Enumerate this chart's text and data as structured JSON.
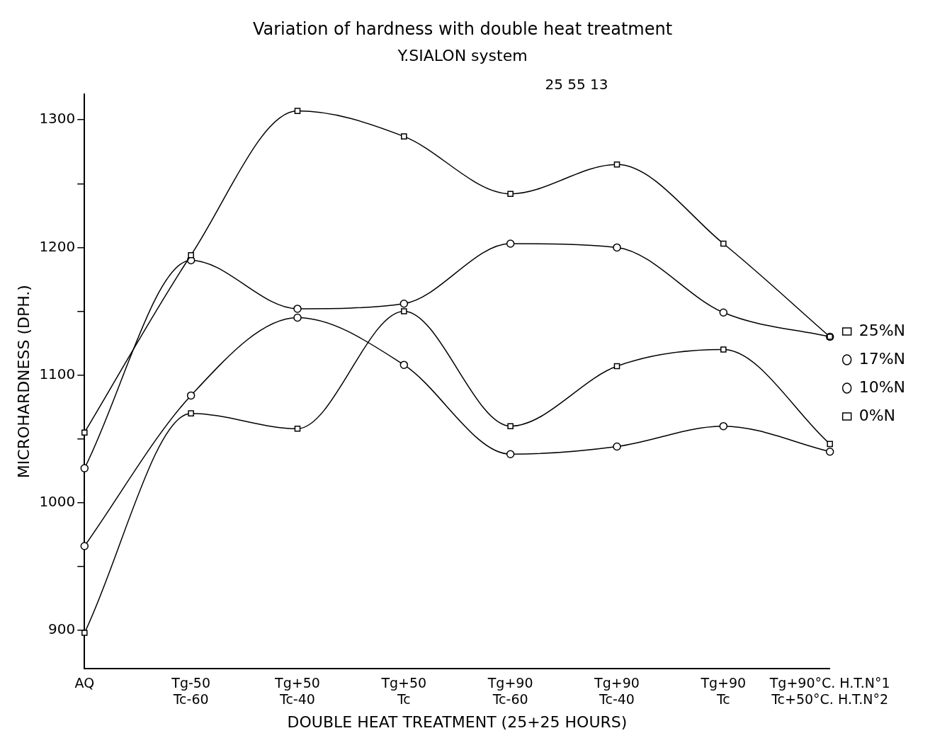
{
  "chart_data": {
    "type": "line",
    "title": "Variation of hardness with double heat treatment",
    "subtitle": "Y.SIALON system",
    "annotations": [
      "25 55 13"
    ],
    "xlabel": "DOUBLE HEAT TREATMENT (25+25 HOURS)",
    "ylabel": "MICROHARDNESS (DPH.)",
    "categories": [
      "AQ",
      "Tg-50\nTc-60",
      "Tg+50\nTc-40",
      "Tg+50\nTc",
      "Tg+90\nTc-60",
      "Tg+90\nTc-40",
      "Tg+90\nTc",
      "Tg+90°C. H.T.N°1\nTc+50°C. H.T.N°2"
    ],
    "series": [
      {
        "name": "25%N",
        "color": "#000000",
        "marker": "square",
        "values": [
          1055,
          1194,
          1307,
          1287,
          1242,
          1265,
          1203,
          1130
        ]
      },
      {
        "name": "17%N",
        "color": "#000000",
        "marker": "circle",
        "values": [
          1027,
          1190,
          1152,
          1156,
          1203,
          1200,
          1149,
          1130
        ]
      },
      {
        "name": "10%N",
        "color": "#000000",
        "marker": "circle",
        "values": [
          966,
          1084,
          1145,
          1108,
          1038,
          1044,
          1060,
          1040
        ]
      },
      {
        "name": "0%N",
        "color": "#000000",
        "marker": "square",
        "values": [
          898,
          1070,
          1058,
          1150,
          1060,
          1107,
          1120,
          1046
        ]
      }
    ],
    "ylim": [
      870,
      1320
    ],
    "yticks": [
      900,
      {
        "value": 950,
        "label": null
      },
      1000,
      {
        "value": 1050,
        "label": null
      },
      1100,
      {
        "value": 1150,
        "label": null
      },
      1200,
      {
        "value": 1250,
        "label": null
      },
      1300
    ],
    "grid": false,
    "legend": "right",
    "line_style": "solid"
  }
}
